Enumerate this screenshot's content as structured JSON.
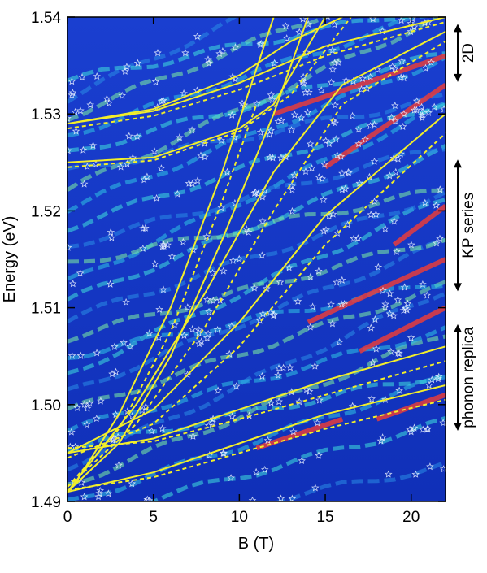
{
  "chart_data": {
    "type": "heatmap",
    "xlabel": "B (T)",
    "ylabel": "Energy (eV)",
    "xlim": [
      0,
      22
    ],
    "ylim": [
      1.49,
      1.54
    ],
    "x_ticks": [
      0,
      5,
      10,
      15,
      20
    ],
    "x_tick_labels": [
      "0",
      "5",
      "10",
      "15",
      "20"
    ],
    "y_ticks": [
      1.49,
      1.5,
      1.51,
      1.52,
      1.53,
      1.54
    ],
    "y_tick_labels": [
      "1.49",
      "1.50",
      "1.51",
      "1.52",
      "1.53",
      "1.54"
    ],
    "grid": false,
    "colormap": [
      "#1a3fd0",
      "#2a8ce6",
      "#3fe0dd",
      "#7ff2a0",
      "#e63c3c"
    ],
    "background_color": "#1437c8",
    "curve_color": "#f2ee2a",
    "marker": "star",
    "marker_color": "#e8f0ff",
    "side_annotations": [
      {
        "label": "2D",
        "y_range": [
          1.5333,
          1.5393
        ]
      },
      {
        "label": "KP series",
        "y_range": [
          1.5117,
          1.5253
        ]
      },
      {
        "label": "phonon replica",
        "y_range": [
          1.4973,
          1.5083
        ]
      }
    ],
    "fitted_curves": [
      {
        "style": "solid",
        "x": [
          0,
          5,
          10,
          15,
          22
        ],
        "y": [
          1.529,
          1.5303,
          1.5332,
          1.537,
          1.54
        ]
      },
      {
        "style": "dashed",
        "x": [
          0,
          5,
          10,
          15,
          22
        ],
        "y": [
          1.5285,
          1.5298,
          1.5325,
          1.536,
          1.5395
        ]
      },
      {
        "style": "solid",
        "x": [
          0,
          5,
          10,
          13,
          16
        ],
        "y": [
          1.529,
          1.5305,
          1.534,
          1.5375,
          1.54
        ]
      },
      {
        "style": "solid",
        "x": [
          0,
          5,
          10,
          12,
          15
        ],
        "y": [
          1.525,
          1.5255,
          1.5285,
          1.531,
          1.54
        ]
      },
      {
        "style": "dashed",
        "x": [
          0,
          5,
          10,
          13,
          16.5
        ],
        "y": [
          1.5245,
          1.5252,
          1.5282,
          1.532,
          1.54
        ]
      },
      {
        "style": "solid",
        "x": [
          0,
          4,
          8,
          12,
          16,
          22
        ],
        "y": [
          1.491,
          1.5,
          1.5115,
          1.524,
          1.533,
          1.5385
        ]
      },
      {
        "style": "dashed",
        "x": [
          0,
          4,
          8,
          12,
          16,
          22
        ],
        "y": [
          1.4915,
          1.498,
          1.508,
          1.52,
          1.531,
          1.5375
        ]
      },
      {
        "style": "solid",
        "x": [
          0,
          5,
          10,
          15,
          22
        ],
        "y": [
          1.495,
          1.4995,
          1.5085,
          1.5195,
          1.53
        ]
      },
      {
        "style": "dashed",
        "x": [
          0,
          5,
          10,
          15,
          22
        ],
        "y": [
          1.4945,
          1.498,
          1.506,
          1.5165,
          1.528
        ]
      },
      {
        "style": "solid",
        "x": [
          0,
          3,
          6,
          9,
          12,
          14
        ],
        "y": [
          1.491,
          1.496,
          1.505,
          1.517,
          1.53,
          1.54
        ]
      },
      {
        "style": "solid",
        "x": [
          0.5,
          3,
          6,
          9,
          12
        ],
        "y": [
          1.492,
          1.499,
          1.51,
          1.524,
          1.54
        ]
      },
      {
        "style": "dashed",
        "x": [
          0,
          3,
          6,
          9,
          11
        ],
        "y": [
          1.4915,
          1.4975,
          1.5075,
          1.521,
          1.531
        ]
      },
      {
        "style": "solid",
        "x": [
          0,
          5,
          10,
          15,
          22
        ],
        "y": [
          1.495,
          1.4965,
          1.4995,
          1.5025,
          1.506
        ]
      },
      {
        "style": "dashed",
        "x": [
          0,
          5,
          10,
          15,
          22
        ],
        "y": [
          1.4955,
          1.4962,
          1.4985,
          1.501,
          1.5045
        ]
      },
      {
        "style": "solid",
        "x": [
          0,
          5,
          10,
          15,
          22
        ],
        "y": [
          1.491,
          1.493,
          1.496,
          1.499,
          1.502
        ]
      },
      {
        "style": "dashed",
        "x": [
          0,
          5,
          10,
          15,
          22
        ],
        "y": [
          1.4912,
          1.4925,
          1.495,
          1.4975,
          1.5005
        ]
      }
    ]
  }
}
